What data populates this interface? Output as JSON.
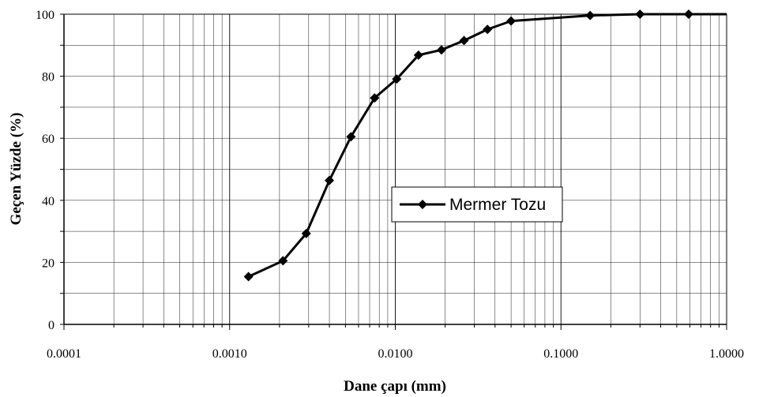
{
  "chart_data": {
    "type": "scatter",
    "xscale": "log",
    "xlim": [
      0.0001,
      1.0
    ],
    "ylim": [
      0,
      100
    ],
    "grid": true,
    "legend_position": "center-right",
    "xlabel": "Dane çapı (mm)",
    "ylabel": "Geçen Yüzde (%)",
    "x_tick_labels": [
      "0.0001",
      "0.0010",
      "0.0100",
      "0.1000",
      "1.0000"
    ],
    "y_tick_labels": [
      "0",
      "20",
      "40",
      "60",
      "80",
      "100"
    ],
    "series": [
      {
        "name": "Mermer Tozu",
        "color": "#000000",
        "marker": "diamond",
        "x": [
          0.0013,
          0.0021,
          0.0029,
          0.004,
          0.0054,
          0.0075,
          0.0102,
          0.0138,
          0.019,
          0.026,
          0.036,
          0.05,
          0.15,
          0.3,
          0.59
        ],
        "y": [
          15.4,
          20.5,
          29.3,
          46.4,
          60.5,
          73.0,
          79.1,
          86.8,
          88.5,
          91.5,
          95.1,
          97.8,
          99.6,
          100.0,
          100.0
        ]
      }
    ]
  }
}
